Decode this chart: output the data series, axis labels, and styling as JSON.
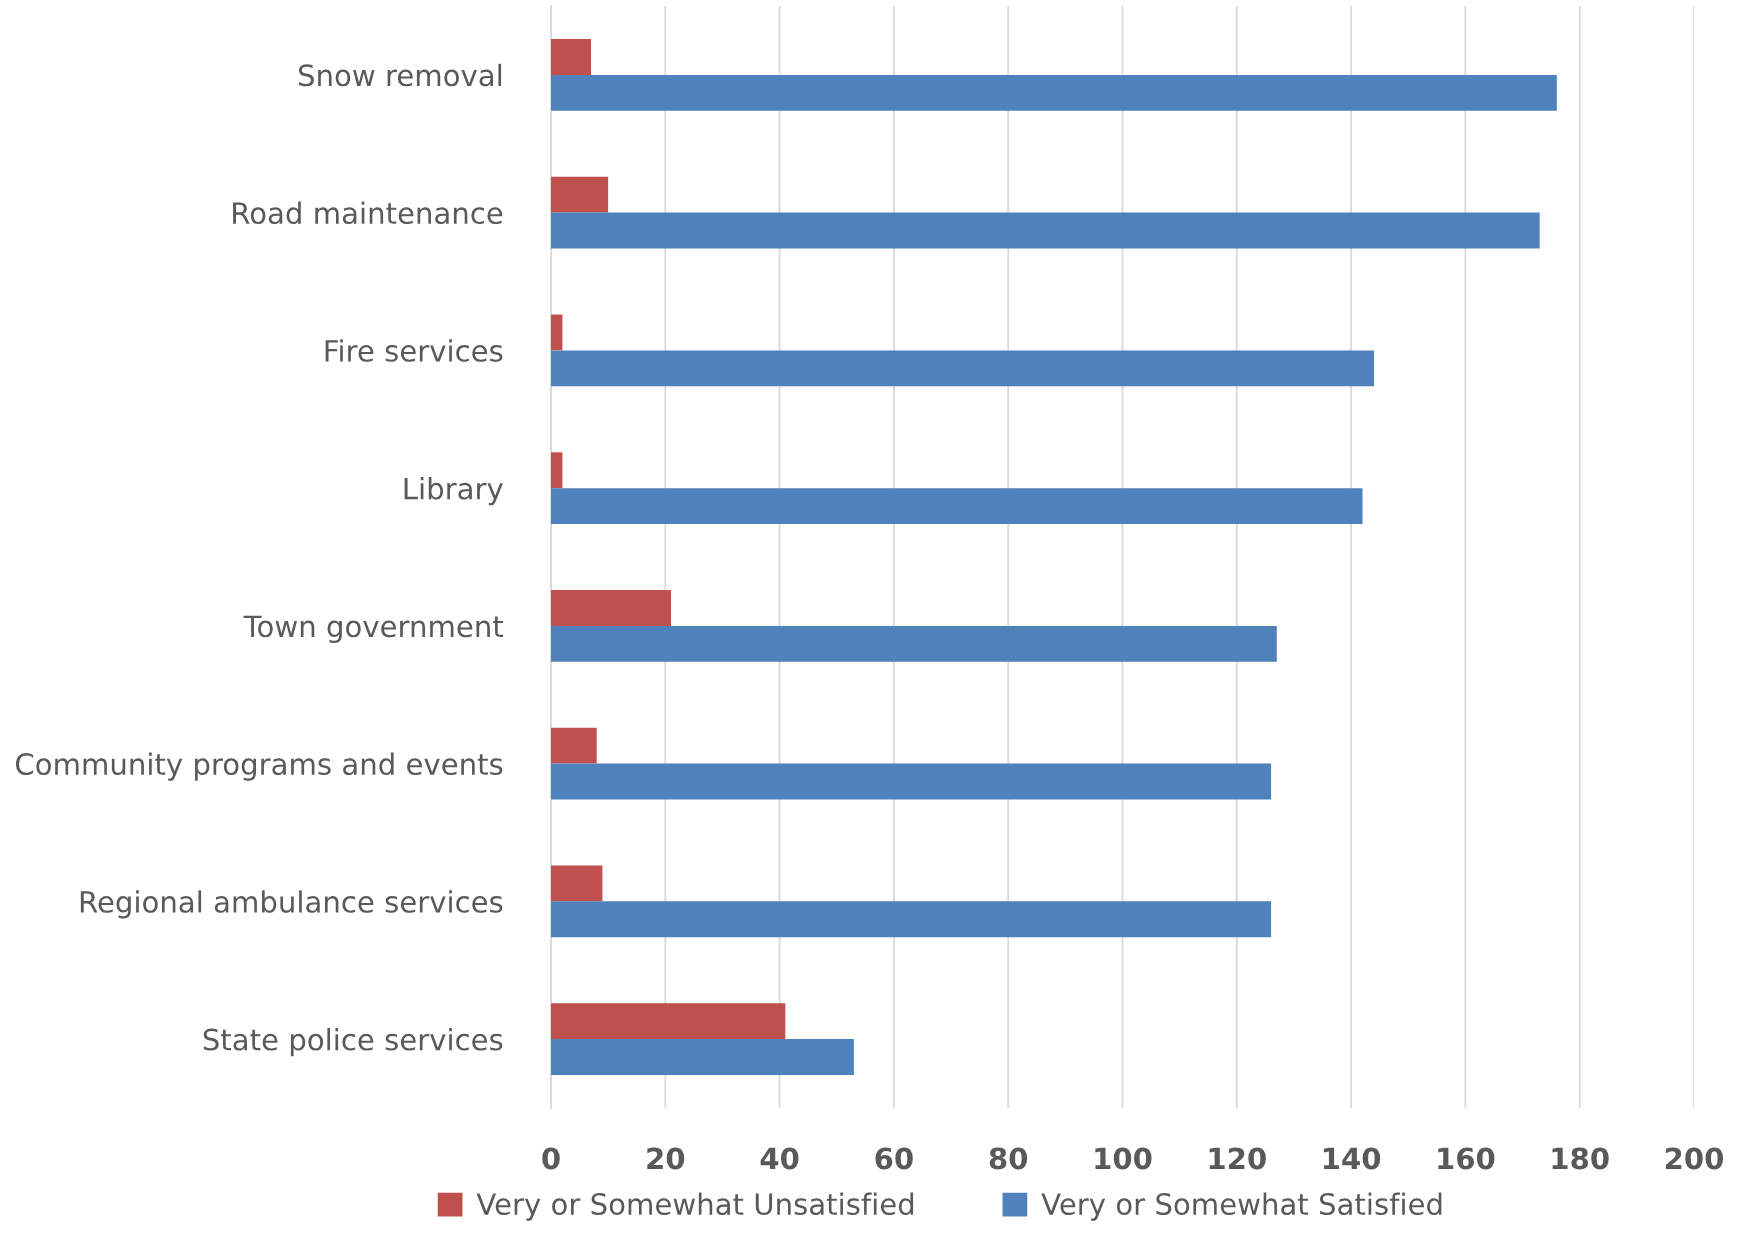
{
  "chart_data": {
    "type": "bar",
    "orientation": "horizontal",
    "categories": [
      "Snow removal",
      "Road maintenance",
      "Fire services",
      "Library",
      "Town government",
      "Community programs and events",
      "Regional ambulance services",
      "State police services"
    ],
    "series": [
      {
        "name": "Very or Somewhat Unsatisfied",
        "color": "#c0504d",
        "values": [
          7,
          10,
          2,
          2,
          21,
          8,
          9,
          41
        ]
      },
      {
        "name": "Very or Somewhat Satisfied",
        "color": "#4f81bd",
        "values": [
          176,
          173,
          144,
          142,
          127,
          126,
          126,
          53
        ]
      }
    ],
    "xlim": [
      0,
      200
    ],
    "xticks": [
      0,
      20,
      40,
      60,
      80,
      100,
      120,
      140,
      160,
      180,
      200
    ],
    "grid": "x",
    "legend": "bottom"
  }
}
